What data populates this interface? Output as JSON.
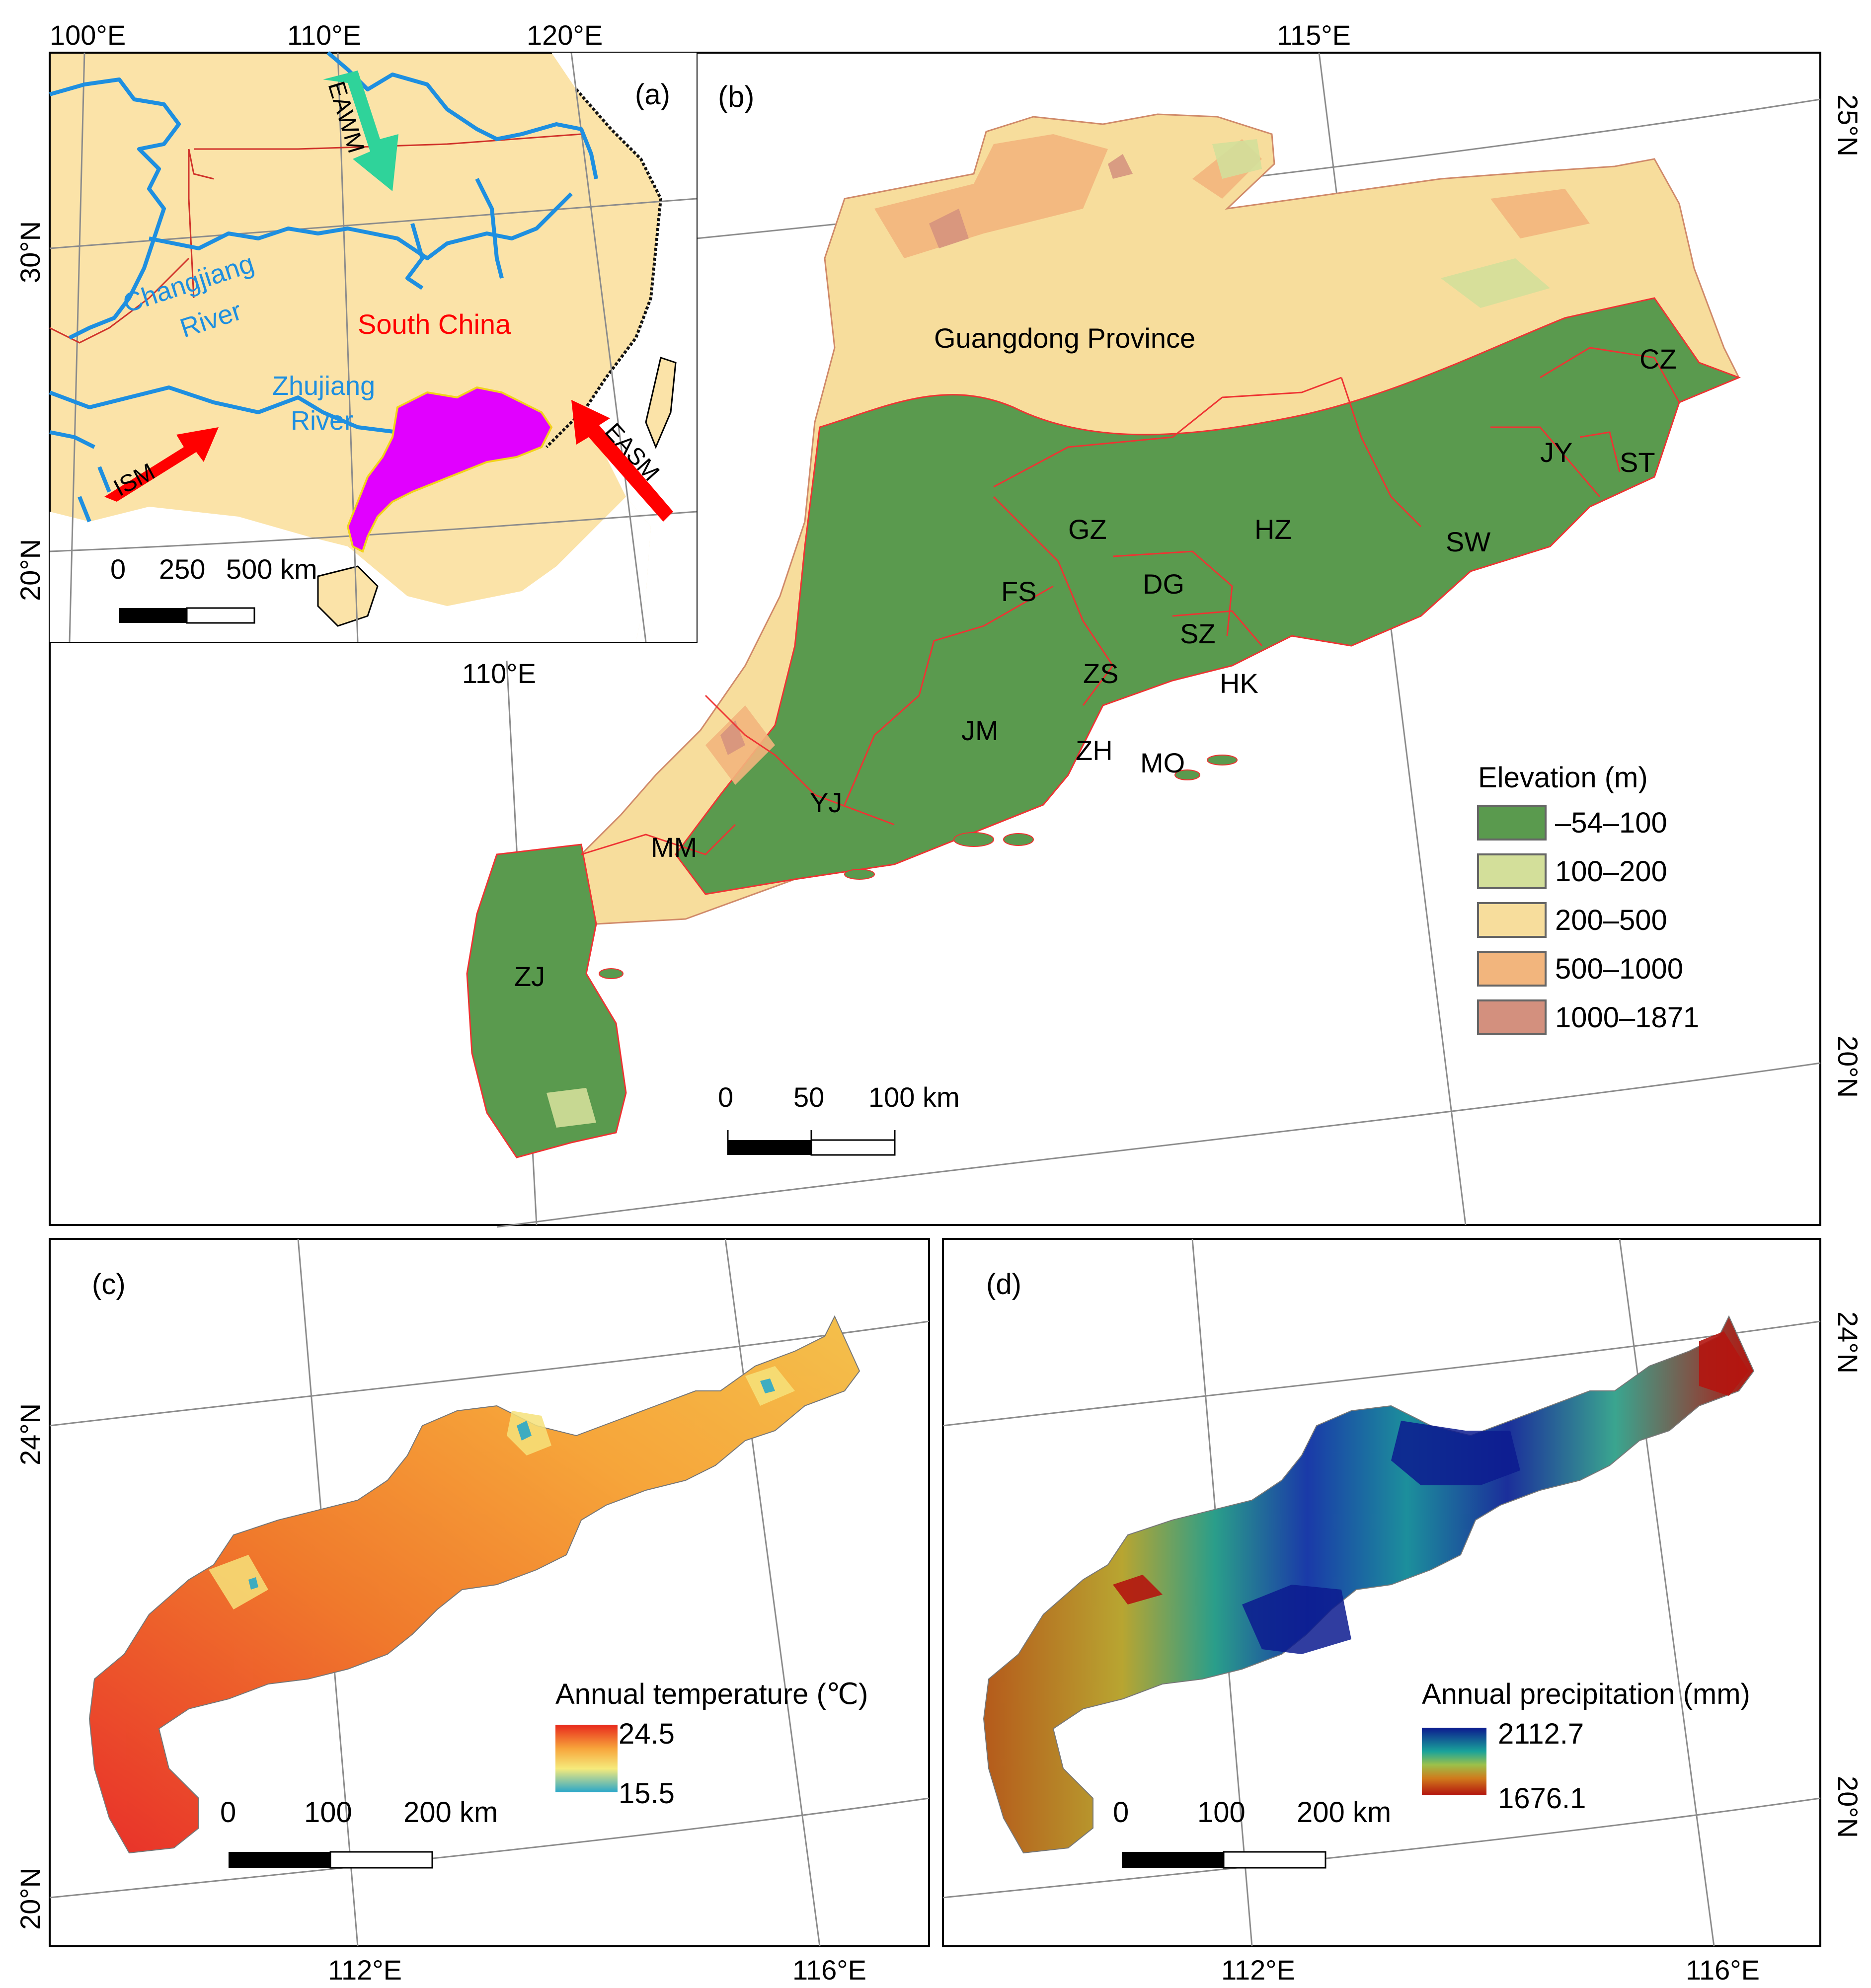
{
  "panel_b": {
    "label": "(b)",
    "top_lon": "115°E",
    "right_lat_1": "25°N",
    "right_lat_2": "20°N",
    "province_label": "Guangdong Province",
    "cities": [
      "CZ",
      "JY",
      "ST",
      "SW",
      "HZ",
      "GZ",
      "DG",
      "FS",
      "SZ",
      "ZS",
      "HK",
      "JM",
      "ZH",
      "MO",
      "YJ",
      "MM",
      "ZJ"
    ],
    "legend": {
      "title": "Elevation (m)",
      "items": [
        {
          "label": "–54–100",
          "color": "#5a9a4e"
        },
        {
          "label": "100–200",
          "color": "#d3df9a"
        },
        {
          "label": "200–500",
          "color": "#f7dd9c"
        },
        {
          "label": "500–1000",
          "color": "#f2b57d"
        },
        {
          "label": "1000–1871",
          "color": "#d3907e"
        }
      ]
    },
    "scale": {
      "t0": "0",
      "t1": "50",
      "t2": "100 km"
    }
  },
  "panel_a": {
    "label": "(a)",
    "top_lons": [
      "100°E",
      "110°E",
      "120°E"
    ],
    "left_lats": [
      "30°N",
      "20°N"
    ],
    "bottom_lon": "110°E",
    "labels": {
      "changjiang_1": "Changjiang",
      "changjiang_2": "River",
      "south_china": "South China",
      "zhujiang_1": "Zhujiang",
      "zhujiang_2": "River"
    },
    "arrows": {
      "eawm": "EAWM",
      "ism": "ISM",
      "easm": "EASM"
    },
    "scale": {
      "t0": "0",
      "t1": "250",
      "t2": "500 km"
    },
    "colors": {
      "land": "#fbe3a8",
      "province": "#e100ff",
      "river": "#1e8fe0",
      "monsoon": "#ff0000",
      "winter_monsoon": "#2fd39a"
    }
  },
  "panel_c": {
    "label": "(c)",
    "left_lats": [
      "24°N",
      "20°N"
    ],
    "bottom_lons": [
      "112°E",
      "116°E"
    ],
    "legend": {
      "title": "Annual temperature (℃)",
      "max": "24.5",
      "min": "15.5"
    },
    "scale": {
      "t0": "0",
      "t1": "100",
      "t2": "200 km"
    }
  },
  "panel_d": {
    "label": "(d)",
    "right_lats": [
      "24°N",
      "20°N"
    ],
    "bottom_lons": [
      "112°E",
      "116°E"
    ],
    "legend": {
      "title": "Annual precipitation (mm)",
      "max": "2112.7",
      "min": "1676.1"
    },
    "scale": {
      "t0": "0",
      "t1": "100",
      "t2": "200 km"
    }
  }
}
